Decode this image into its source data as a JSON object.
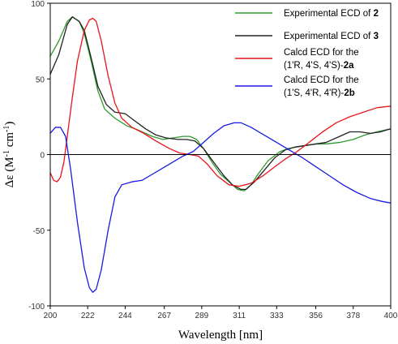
{
  "chart_data": {
    "type": "line",
    "xlabel": "Wavelength [nm]",
    "ylabel": {
      "prefix": "Δε (M",
      "sup1": "-1",
      "mid": " cm",
      "sup2": "-1",
      "suffix": ")"
    },
    "xlim": [
      200,
      400
    ],
    "ylim": [
      -100,
      100
    ],
    "x_ticks": [
      "200",
      "222",
      "244",
      "267",
      "289",
      "311",
      "333",
      "356",
      "378",
      "400"
    ],
    "y_ticks": [
      "100",
      "50",
      "0",
      "-50",
      "-100"
    ],
    "zero_line": true,
    "legend_position": "top-right",
    "series": [
      {
        "name": "Experimental ECD of 2",
        "legend_lines": [
          [
            "Experimental ECD of ",
            "2",
            ""
          ]
        ],
        "color": "#2e9a2e",
        "points": [
          [
            200,
            65
          ],
          [
            205,
            75
          ],
          [
            210,
            88
          ],
          [
            213,
            91
          ],
          [
            217,
            88
          ],
          [
            220,
            80
          ],
          [
            224,
            62
          ],
          [
            228,
            42
          ],
          [
            232,
            30
          ],
          [
            238,
            24
          ],
          [
            245,
            19
          ],
          [
            252,
            16
          ],
          [
            260,
            12
          ],
          [
            266,
            10
          ],
          [
            272,
            11
          ],
          [
            278,
            12
          ],
          [
            282,
            12
          ],
          [
            286,
            10
          ],
          [
            290,
            4
          ],
          [
            295,
            -5
          ],
          [
            300,
            -13
          ],
          [
            305,
            -18
          ],
          [
            310,
            -23
          ],
          [
            314,
            -24
          ],
          [
            318,
            -20
          ],
          [
            322,
            -13
          ],
          [
            328,
            -4
          ],
          [
            335,
            2
          ],
          [
            340,
            4
          ],
          [
            345,
            5
          ],
          [
            350,
            6
          ],
          [
            356,
            7
          ],
          [
            362,
            7
          ],
          [
            370,
            8
          ],
          [
            378,
            10
          ],
          [
            385,
            13
          ],
          [
            392,
            15
          ],
          [
            400,
            17
          ]
        ]
      },
      {
        "name": "Experimental ECD of 3",
        "legend_lines": [
          [
            "Experimental ECD of ",
            "3",
            ""
          ]
        ],
        "color": "#222222",
        "points": [
          [
            200,
            53
          ],
          [
            205,
            66
          ],
          [
            210,
            86
          ],
          [
            213,
            91
          ],
          [
            217,
            88
          ],
          [
            220,
            82
          ],
          [
            224,
            64
          ],
          [
            228,
            45
          ],
          [
            233,
            33
          ],
          [
            238,
            28
          ],
          [
            244,
            27
          ],
          [
            250,
            22
          ],
          [
            256,
            17
          ],
          [
            262,
            13
          ],
          [
            268,
            11
          ],
          [
            275,
            10
          ],
          [
            280,
            10
          ],
          [
            285,
            9
          ],
          [
            290,
            4
          ],
          [
            296,
            -5
          ],
          [
            302,
            -14
          ],
          [
            307,
            -20
          ],
          [
            312,
            -23
          ],
          [
            315,
            -23
          ],
          [
            320,
            -18
          ],
          [
            326,
            -10
          ],
          [
            332,
            -2
          ],
          [
            338,
            3
          ],
          [
            344,
            5
          ],
          [
            350,
            6
          ],
          [
            356,
            7
          ],
          [
            362,
            8
          ],
          [
            370,
            12
          ],
          [
            376,
            15
          ],
          [
            382,
            15
          ],
          [
            388,
            14
          ],
          [
            394,
            15
          ],
          [
            400,
            17
          ]
        ]
      },
      {
        "name": "Calcd ECD for the (1'R, 4'S, 4'S)-2a",
        "legend_lines": [
          [
            "Calcd ECD for the",
            "",
            ""
          ],
          [
            "(1'R, 4'S, 4'S)-",
            "2a",
            ""
          ]
        ],
        "color": "#e8141a",
        "points": [
          [
            200,
            -12
          ],
          [
            202,
            -17
          ],
          [
            204,
            -18
          ],
          [
            206,
            -15
          ],
          [
            208,
            -5
          ],
          [
            210,
            12
          ],
          [
            213,
            38
          ],
          [
            216,
            62
          ],
          [
            220,
            82
          ],
          [
            223,
            89
          ],
          [
            225,
            90
          ],
          [
            227,
            88
          ],
          [
            230,
            75
          ],
          [
            234,
            52
          ],
          [
            238,
            34
          ],
          [
            242,
            24
          ],
          [
            248,
            18
          ],
          [
            255,
            14
          ],
          [
            262,
            9
          ],
          [
            270,
            4
          ],
          [
            276,
            1
          ],
          [
            282,
            0
          ],
          [
            287,
            -1
          ],
          [
            292,
            -6
          ],
          [
            298,
            -14
          ],
          [
            305,
            -20
          ],
          [
            311,
            -21
          ],
          [
            318,
            -19
          ],
          [
            325,
            -14
          ],
          [
            332,
            -8
          ],
          [
            338,
            -3
          ],
          [
            345,
            2
          ],
          [
            352,
            8
          ],
          [
            360,
            15
          ],
          [
            368,
            21
          ],
          [
            376,
            25
          ],
          [
            384,
            28
          ],
          [
            392,
            31
          ],
          [
            400,
            32
          ]
        ]
      },
      {
        "name": "Calcd ECD for the (1'S, 4'R, 4'R)-2b",
        "legend_lines": [
          [
            "Calcd ECD for the",
            "",
            ""
          ],
          [
            "(1'S, 4'R, 4'R)-",
            "2b",
            ""
          ]
        ],
        "color": "#1a1ae6",
        "points": [
          [
            200,
            14
          ],
          [
            203,
            18
          ],
          [
            206,
            18
          ],
          [
            209,
            12
          ],
          [
            212,
            -10
          ],
          [
            216,
            -45
          ],
          [
            220,
            -75
          ],
          [
            223,
            -88
          ],
          [
            225,
            -91
          ],
          [
            227,
            -89
          ],
          [
            230,
            -76
          ],
          [
            234,
            -50
          ],
          [
            238,
            -28
          ],
          [
            242,
            -20
          ],
          [
            248,
            -18
          ],
          [
            254,
            -17
          ],
          [
            260,
            -13
          ],
          [
            266,
            -9
          ],
          [
            272,
            -5
          ],
          [
            278,
            -1
          ],
          [
            284,
            2
          ],
          [
            290,
            8
          ],
          [
            296,
            14
          ],
          [
            302,
            19
          ],
          [
            308,
            21
          ],
          [
            312,
            21
          ],
          [
            318,
            18
          ],
          [
            324,
            14
          ],
          [
            330,
            10
          ],
          [
            336,
            6
          ],
          [
            342,
            2
          ],
          [
            348,
            -2
          ],
          [
            356,
            -8
          ],
          [
            364,
            -14
          ],
          [
            372,
            -20
          ],
          [
            380,
            -25
          ],
          [
            388,
            -29
          ],
          [
            395,
            -31
          ],
          [
            400,
            -32
          ]
        ]
      }
    ]
  }
}
